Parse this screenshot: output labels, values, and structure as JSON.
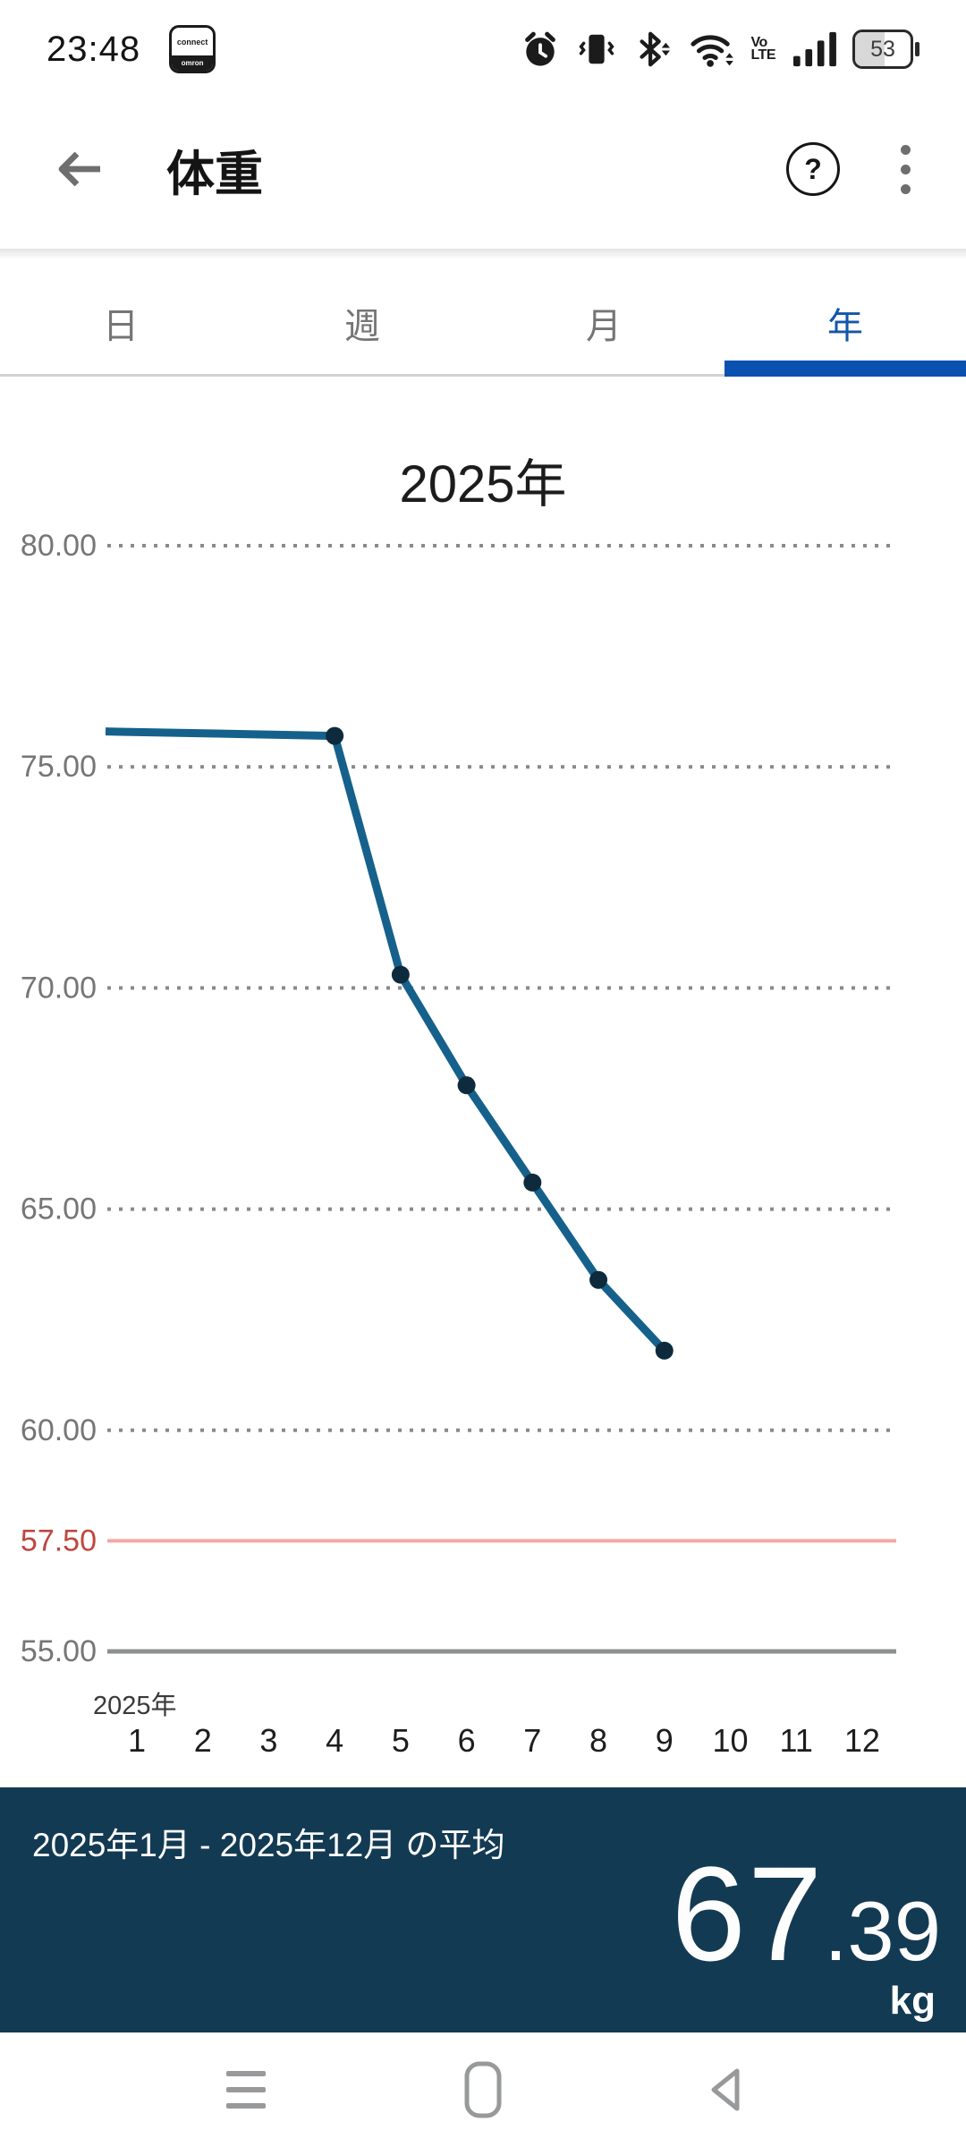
{
  "status_bar": {
    "time": "23:48",
    "app_badge": {
      "top": "connect",
      "bottom": "omron"
    },
    "volte": {
      "line1": "Vo",
      "line2": "LTE"
    },
    "battery_percent": "53"
  },
  "header": {
    "title": "体重",
    "help_glyph": "?"
  },
  "tabs": {
    "items": [
      {
        "label": "日"
      },
      {
        "label": "週"
      },
      {
        "label": "月"
      },
      {
        "label": "年"
      }
    ],
    "active_index": 3
  },
  "chart_data": {
    "type": "line",
    "title": "2025年",
    "x_axis_year_label": "2025年",
    "x_categories": [
      "1",
      "2",
      "3",
      "4",
      "5",
      "6",
      "7",
      "8",
      "9",
      "10",
      "11",
      "12"
    ],
    "y_ticks": [
      80,
      75,
      70,
      65,
      60
    ],
    "target_line": {
      "value": 57.5,
      "label": "57.50"
    },
    "axis_floor": {
      "value": 55,
      "label": "55.00"
    },
    "ylim": [
      55,
      81.5
    ],
    "grid": "dotted-horizontal",
    "legend": "none",
    "unit": "kg",
    "series": [
      {
        "name": "monthly-average-weight",
        "edge_start": {
          "value": 75.8
        },
        "points": [
          {
            "month": 4,
            "value": 75.7
          },
          {
            "month": 5,
            "value": 70.3
          },
          {
            "month": 6,
            "value": 67.8
          },
          {
            "month": 7,
            "value": 65.6
          },
          {
            "month": 8,
            "value": 63.4
          },
          {
            "month": 9,
            "value": 61.8
          }
        ]
      }
    ]
  },
  "summary": {
    "label": "2025年1月 - 2025年12月 の平均",
    "value_int": "67",
    "value_dec": ".39",
    "unit": "kg"
  },
  "colors": {
    "accent_blue": "#0b51b0",
    "tab_active_text": "#1356a9",
    "line": "#15618c",
    "dot": "#0d2b3d",
    "grid": "#8a8a8a",
    "target_text": "#bf4740",
    "target_line": "#f2a7a3",
    "axis_floor": "#8d8f91",
    "panel_bg": "#133a53",
    "icon_dark": "#1b1b1b",
    "nav_gray": "#97999b"
  }
}
